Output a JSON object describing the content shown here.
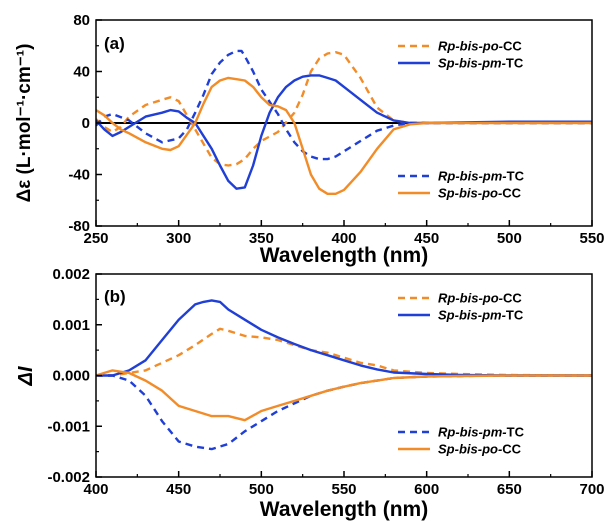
{
  "chart_data": [
    {
      "type": "line",
      "panel_label": "(a)",
      "xlabel": "Wavelength (nm)",
      "ylabel": "Δε (L·mol⁻¹·cm⁻¹)",
      "xlim": [
        250,
        550
      ],
      "ylim": [
        -80,
        80
      ],
      "x_ticks": [
        "250",
        "300",
        "350",
        "400",
        "450",
        "500",
        "550"
      ],
      "y_ticks": [
        "-80",
        "-40",
        "0",
        "40",
        "80"
      ],
      "zero_line": true,
      "legend_placement": "top-right and bottom-right",
      "series": [
        {
          "name": "Rp-bis-po-CC",
          "color": "#F28C28",
          "style": "dashed",
          "x": [
            250,
            255,
            260,
            265,
            270,
            280,
            290,
            295,
            300,
            310,
            320,
            325,
            330,
            335,
            340,
            345,
            350,
            360,
            370,
            375,
            380,
            385,
            390,
            395,
            400,
            410,
            420,
            430,
            440,
            450,
            500,
            550
          ],
          "y": [
            3,
            -3,
            -7,
            -3,
            5,
            14,
            18,
            20,
            17,
            -5,
            -27,
            -32,
            -33,
            -32,
            -28,
            -20,
            -14,
            -7,
            8,
            22,
            40,
            50,
            54,
            55,
            53,
            35,
            12,
            2,
            0,
            0,
            0,
            0
          ]
        },
        {
          "name": "Sp-bis-pm-TC",
          "color": "#1F3FD6",
          "style": "solid",
          "x": [
            250,
            255,
            260,
            265,
            270,
            280,
            290,
            295,
            300,
            305,
            310,
            320,
            325,
            330,
            335,
            340,
            345,
            350,
            355,
            360,
            365,
            370,
            375,
            380,
            385,
            390,
            395,
            400,
            410,
            420,
            430,
            440,
            450,
            500,
            550
          ],
          "y": [
            2,
            -5,
            -10,
            -7,
            -3,
            5,
            8,
            10,
            9,
            4,
            0,
            -20,
            -33,
            -45,
            -51,
            -50,
            -33,
            -10,
            8,
            20,
            28,
            33,
            36,
            37,
            37,
            35,
            33,
            28,
            18,
            8,
            2,
            0,
            0,
            1,
            1
          ]
        },
        {
          "name": "Rp-bis-pm-TC",
          "color": "#1F3FD6",
          "style": "dashed",
          "x": [
            250,
            255,
            260,
            270,
            280,
            290,
            300,
            305,
            310,
            315,
            320,
            325,
            330,
            335,
            338,
            340,
            345,
            350,
            360,
            365,
            370,
            375,
            380,
            385,
            390,
            395,
            400,
            410,
            420,
            430,
            440,
            450,
            500,
            550
          ],
          "y": [
            -2,
            5,
            7,
            2,
            -8,
            -15,
            -12,
            -5,
            8,
            22,
            38,
            47,
            53,
            56,
            56,
            52,
            40,
            26,
            7,
            -5,
            -15,
            -22,
            -26,
            -28,
            -28,
            -26,
            -22,
            -14,
            -6,
            -2,
            0,
            0,
            0,
            0
          ]
        },
        {
          "name": "Sp-bis-po-CC",
          "color": "#F28C28",
          "style": "solid",
          "x": [
            250,
            255,
            260,
            265,
            270,
            280,
            290,
            295,
            300,
            310,
            315,
            320,
            325,
            330,
            335,
            340,
            345,
            350,
            355,
            360,
            365,
            370,
            375,
            380,
            385,
            390,
            395,
            400,
            410,
            420,
            430,
            440,
            450,
            500,
            550
          ],
          "y": [
            10,
            6,
            0,
            -5,
            -8,
            -15,
            -20,
            -21,
            -18,
            0,
            15,
            28,
            33,
            35,
            34,
            33,
            28,
            20,
            14,
            13,
            10,
            0,
            -20,
            -40,
            -51,
            -55,
            -55,
            -52,
            -38,
            -20,
            -5,
            -1,
            0,
            0,
            0
          ]
        }
      ]
    },
    {
      "type": "line",
      "panel_label": "(b)",
      "xlabel": "Wavelength (nm)",
      "ylabel": "ΔI",
      "xlim": [
        400,
        700
      ],
      "ylim": [
        -0.002,
        0.002
      ],
      "x_ticks": [
        "400",
        "450",
        "500",
        "550",
        "600",
        "650",
        "700"
      ],
      "y_ticks": [
        "-0.002",
        "-0.001",
        "0.000",
        "0.001",
        "0.002"
      ],
      "legend_placement": "top-right and bottom-right",
      "series": [
        {
          "name": "Rp-bis-po-CC",
          "color": "#F28C28",
          "style": "dashed",
          "x": [
            400,
            410,
            420,
            430,
            440,
            450,
            460,
            470,
            475,
            480,
            490,
            500,
            510,
            520,
            530,
            540,
            550,
            560,
            570,
            580,
            600,
            620,
            650,
            700
          ],
          "y": [
            0,
            0,
            5e-05,
            0.0001,
            0.00025,
            0.0004,
            0.0006,
            0.00082,
            0.00092,
            0.00088,
            0.00078,
            0.00075,
            0.0007,
            0.0006,
            0.0005,
            0.00045,
            0.00035,
            0.00025,
            0.0002,
            0.0001,
            5e-05,
            3e-05,
            1e-05,
            0
          ]
        },
        {
          "name": "Sp-bis-pm-TC",
          "color": "#1F3FD6",
          "style": "solid",
          "x": [
            400,
            410,
            420,
            430,
            440,
            450,
            460,
            465,
            470,
            475,
            480,
            490,
            500,
            510,
            520,
            530,
            540,
            550,
            560,
            570,
            580,
            600,
            620,
            650,
            700
          ],
          "y": [
            0,
            0,
            0.0001,
            0.0003,
            0.0007,
            0.0011,
            0.0014,
            0.00145,
            0.00148,
            0.00145,
            0.0013,
            0.0011,
            0.0009,
            0.00075,
            0.00062,
            0.0005,
            0.0004,
            0.0003,
            0.0002,
            0.00012,
            6e-05,
            3e-05,
            1e-05,
            0,
            0
          ]
        },
        {
          "name": "Rp-bis-pm-TC",
          "color": "#1F3FD6",
          "style": "dashed",
          "x": [
            400,
            410,
            420,
            430,
            440,
            450,
            460,
            470,
            480,
            490,
            500,
            510,
            520,
            530,
            540,
            550,
            560,
            570,
            580,
            600,
            620,
            650,
            700
          ],
          "y": [
            0,
            0,
            -0.0001,
            -0.0004,
            -0.0009,
            -0.0013,
            -0.0014,
            -0.00145,
            -0.00135,
            -0.0011,
            -0.0009,
            -0.0007,
            -0.00055,
            -0.0004,
            -0.0003,
            -0.00022,
            -0.00015,
            -0.0001,
            -5e-05,
            -2e-05,
            -1e-05,
            0,
            0
          ]
        },
        {
          "name": "Sp-bis-po-CC",
          "color": "#F28C28",
          "style": "solid",
          "x": [
            400,
            410,
            420,
            430,
            440,
            450,
            460,
            470,
            480,
            490,
            500,
            510,
            520,
            530,
            540,
            550,
            560,
            570,
            580,
            600,
            620,
            650,
            700
          ],
          "y": [
            0,
            0.0001,
            5e-05,
            -0.0001,
            -0.0003,
            -0.0006,
            -0.0007,
            -0.0008,
            -0.0008,
            -0.00088,
            -0.0007,
            -0.0006,
            -0.0005,
            -0.0004,
            -0.0003,
            -0.00022,
            -0.00015,
            -0.0001,
            -5e-05,
            -2e-05,
            -1e-05,
            0,
            0
          ]
        }
      ]
    }
  ]
}
